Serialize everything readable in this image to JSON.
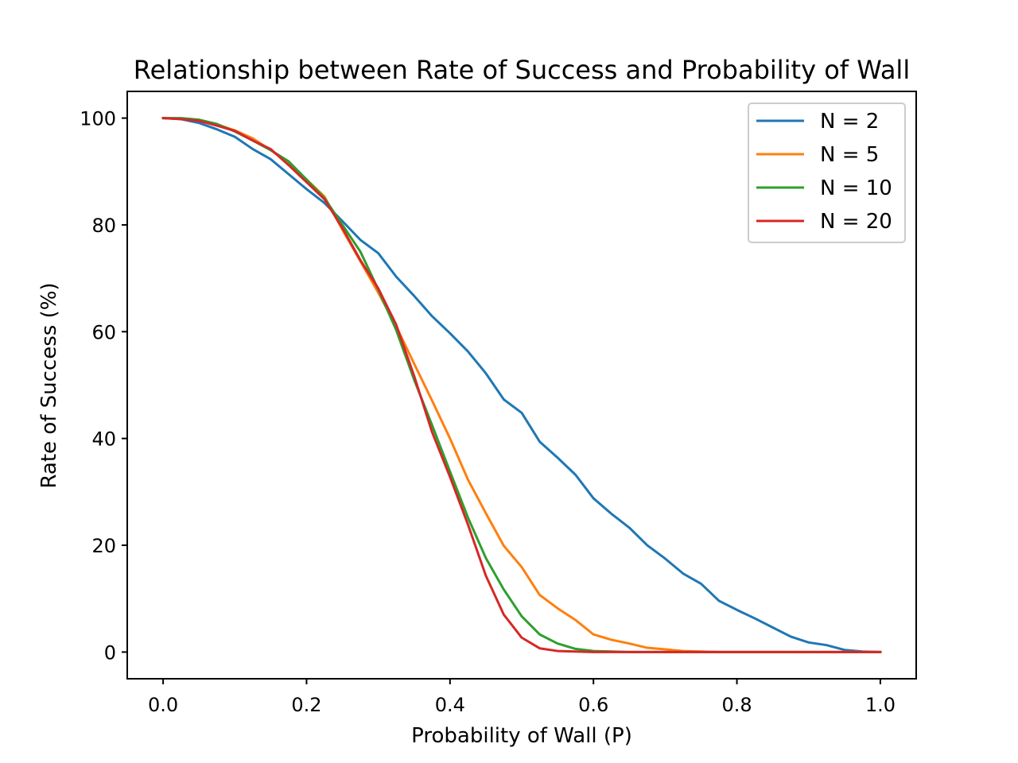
{
  "chart_data": {
    "type": "line",
    "title": "Relationship between Rate of Success and Probability of Wall",
    "xlabel": "Probability of Wall (P)",
    "ylabel": "Rate of Success (%)",
    "xlim": [
      -0.05,
      1.05
    ],
    "ylim": [
      -5,
      105
    ],
    "xticks": [
      0.0,
      0.2,
      0.4,
      0.6,
      0.8,
      1.0
    ],
    "xtick_labels": [
      "0.0",
      "0.2",
      "0.4",
      "0.6",
      "0.8",
      "1.0"
    ],
    "yticks": [
      0,
      20,
      40,
      60,
      80,
      100
    ],
    "ytick_labels": [
      "0",
      "20",
      "40",
      "60",
      "80",
      "100"
    ],
    "grid": false,
    "legend_position": "top-right",
    "x": [
      0.0,
      0.025,
      0.05,
      0.075,
      0.1,
      0.125,
      0.15,
      0.175,
      0.2,
      0.225,
      0.25,
      0.275,
      0.3,
      0.325,
      0.35,
      0.375,
      0.4,
      0.425,
      0.45,
      0.475,
      0.5,
      0.525,
      0.55,
      0.575,
      0.6,
      0.625,
      0.65,
      0.675,
      0.7,
      0.725,
      0.75,
      0.775,
      0.8,
      0.825,
      0.85,
      0.875,
      0.9,
      0.925,
      0.95,
      0.975,
      1.0
    ],
    "series": [
      {
        "name": "N = 2",
        "color": "#1f77b4",
        "values": [
          100,
          99.8,
          99.1,
          97.9,
          96.5,
          94.2,
          92.3,
          89.5,
          86.7,
          84.1,
          80.7,
          77.2,
          74.7,
          70.3,
          66.7,
          62.9,
          59.7,
          56.3,
          52.2,
          47.3,
          44.8,
          39.4,
          36.4,
          33.2,
          28.8,
          25.9,
          23.3,
          20.0,
          17.5,
          14.7,
          12.8,
          9.6,
          7.9,
          6.3,
          4.6,
          2.9,
          1.8,
          1.3,
          0.4,
          0.1,
          0.0
        ]
      },
      {
        "name": "N = 5",
        "color": "#ff7f0e",
        "values": [
          100,
          99.9,
          99.6,
          98.8,
          97.7,
          96.2,
          94.0,
          91.6,
          88.5,
          85.3,
          79.1,
          73.2,
          67.3,
          61.0,
          54.0,
          47.1,
          40.0,
          32.3,
          26.0,
          19.9,
          15.9,
          10.7,
          8.2,
          6.0,
          3.3,
          2.3,
          1.6,
          0.8,
          0.5,
          0.2,
          0.1,
          0.0,
          0.0,
          0.0,
          0.0,
          0.0,
          0.0,
          0.0,
          0.0,
          0.0,
          0.0
        ]
      },
      {
        "name": "N = 10",
        "color": "#2ca02c",
        "values": [
          100,
          100,
          99.7,
          98.9,
          97.5,
          95.8,
          94.0,
          91.9,
          88.5,
          85.0,
          80.0,
          75.0,
          67.9,
          60.3,
          51.0,
          42.5,
          33.8,
          25.2,
          17.6,
          11.7,
          6.7,
          3.3,
          1.6,
          0.6,
          0.2,
          0.1,
          0.0,
          0.0,
          0.0,
          0.0,
          0.0,
          0.0,
          0.0,
          0.0,
          0.0,
          0.0,
          0.0,
          0.0,
          0.0,
          0.0,
          0.0
        ]
      },
      {
        "name": "N = 20",
        "color": "#d62728",
        "values": [
          100,
          99.8,
          99.5,
          98.6,
          97.6,
          95.8,
          94.2,
          91.2,
          88.0,
          84.8,
          79.4,
          73.4,
          68.1,
          61.3,
          51.7,
          41.2,
          32.8,
          23.9,
          14.3,
          7.0,
          2.7,
          0.7,
          0.2,
          0.1,
          0.0,
          0.0,
          0.0,
          0.0,
          0.0,
          0.0,
          0.0,
          0.0,
          0.0,
          0.0,
          0.0,
          0.0,
          0.0,
          0.0,
          0.0,
          0.0,
          0.0
        ]
      }
    ]
  }
}
